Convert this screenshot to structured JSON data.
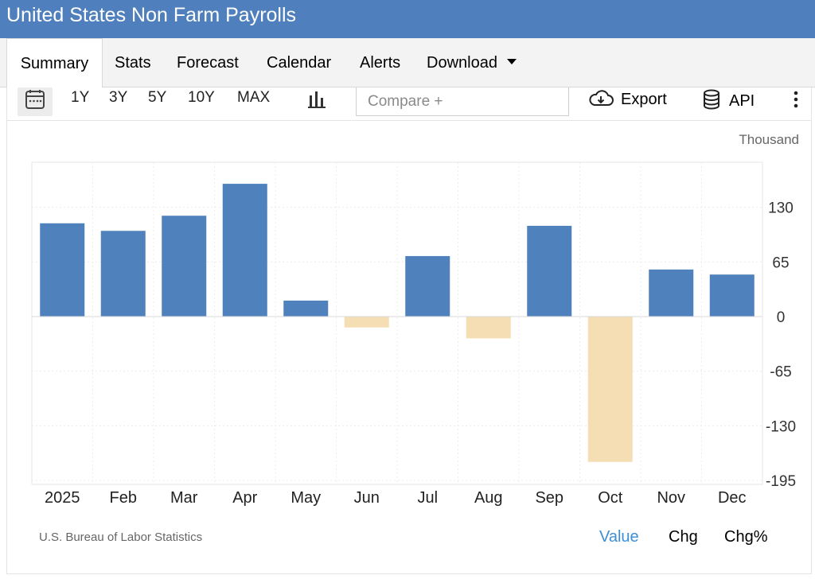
{
  "header": {
    "title": "United States Non Farm Payrolls"
  },
  "tabs": [
    {
      "label": "Summary",
      "active": true
    },
    {
      "label": "Stats",
      "active": false
    },
    {
      "label": "Forecast",
      "active": false
    },
    {
      "label": "Calendar",
      "active": false
    },
    {
      "label": "Alerts",
      "active": false
    },
    {
      "label": "Download",
      "active": false
    }
  ],
  "toolbar": {
    "calendar_icon": "calendar-icon",
    "ranges": [
      "1Y",
      "3Y",
      "5Y",
      "10Y",
      "MAX"
    ],
    "chart_type_icon": "bar-chart-icon",
    "compare_placeholder": "Compare +",
    "export_label": "Export",
    "export_icon": "cloud-download-icon",
    "api_label": "API",
    "api_icon": "database-icon",
    "more_icon": "vertical-ellipsis-icon"
  },
  "footer": {
    "source": "U.S. Bureau of Labor Statistics",
    "modes": [
      {
        "label": "Value",
        "active": true
      },
      {
        "label": "Chg",
        "active": false
      },
      {
        "label": "Chg%",
        "active": false
      }
    ]
  },
  "colors": {
    "header_bg": "#4f7fbc",
    "positive_bar": "#4f81bd",
    "negative_bar": "#f5deb3",
    "active_mode": "#3d8fd6"
  },
  "chart_data": {
    "type": "bar",
    "unit": "Thousand",
    "categories": [
      "2025",
      "Feb",
      "Mar",
      "Apr",
      "May",
      "Jun",
      "Jul",
      "Aug",
      "Sep",
      "Oct",
      "Nov",
      "Dec"
    ],
    "values": [
      111,
      102,
      120,
      158,
      19,
      -13,
      72,
      -26,
      108,
      -173,
      56,
      50
    ],
    "y_ticks": [
      130,
      65,
      0,
      -65,
      -130,
      -195
    ],
    "ylim": [
      -195,
      180
    ],
    "axis_position": "right",
    "grid": true
  }
}
